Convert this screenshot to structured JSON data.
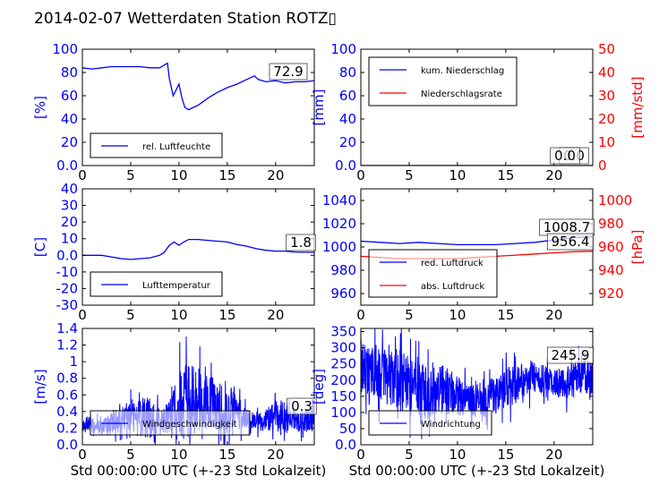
{
  "title": "2014-02-07 Wetterdaten Station ROTZ▯",
  "colors": {
    "left_axis": "#0000ff",
    "right_axis": "#ff0000",
    "text": "#000000"
  },
  "chart_data": [
    {
      "id": "humidity",
      "type": "line",
      "ylabel": "[%]",
      "xlim": [
        0,
        24
      ],
      "ylim": [
        0,
        100
      ],
      "xticks": [
        0,
        5,
        10,
        15,
        20
      ],
      "yticks": [
        0,
        20,
        40,
        60,
        80,
        100
      ],
      "series": [
        {
          "name": "rel. Luftfeuchte",
          "color": "#0000ff",
          "x": [
            0,
            1,
            2,
            3,
            4,
            5,
            6,
            7,
            8,
            8.8,
            9.0,
            9.4,
            9.7,
            10.0,
            10.3,
            10.6,
            11.0,
            11.5,
            12,
            13,
            14,
            15,
            16,
            17,
            17.8,
            18.2,
            19,
            20,
            21,
            22,
            23,
            24
          ],
          "y": [
            84,
            83,
            84,
            85,
            85,
            85,
            85,
            84,
            84,
            88,
            75,
            60,
            65,
            70,
            58,
            50,
            48,
            50,
            52,
            58,
            63,
            67,
            70,
            74,
            77,
            74,
            72,
            73,
            71,
            72,
            72,
            73
          ]
        }
      ],
      "value_label": "72.9",
      "legend_placement": "lower-left"
    },
    {
      "id": "precipitation",
      "type": "line",
      "ylabel": "[mm]",
      "ylabel_right": "[mm/std]",
      "xlim": [
        0,
        24
      ],
      "ylim": [
        0,
        100
      ],
      "ylim_right": [
        0,
        50
      ],
      "xticks": [
        0,
        5,
        10,
        15,
        20
      ],
      "yticks": [
        0,
        20,
        40,
        60,
        80,
        100
      ],
      "yticks_right": [
        0,
        10,
        20,
        30,
        40,
        50
      ],
      "series": [
        {
          "name": "kum. Niederschlag",
          "color": "#0000ff",
          "axis": "left",
          "x": [
            0,
            24
          ],
          "y": [
            0,
            0
          ]
        },
        {
          "name": "Niederschlagsrate",
          "color": "#ff0000",
          "axis": "right",
          "x": [
            0,
            24
          ],
          "y": [
            0,
            0
          ]
        }
      ],
      "value_labels": [
        "0.0",
        "0.0"
      ],
      "legend_placement": "upper-left"
    },
    {
      "id": "temperature",
      "type": "line",
      "ylabel": "[C]",
      "xlim": [
        0,
        24
      ],
      "ylim": [
        -30,
        40
      ],
      "xticks": [
        0,
        5,
        10,
        15,
        20
      ],
      "yticks": [
        -30,
        -20,
        -10,
        0,
        10,
        20,
        30,
        40
      ],
      "series": [
        {
          "name": "Lufttemperatur",
          "color": "#0000ff",
          "x": [
            0,
            1,
            2,
            3,
            4,
            5,
            6,
            7,
            8,
            8.5,
            9,
            9.5,
            10,
            10.5,
            11,
            12,
            13,
            14,
            15,
            16,
            17,
            18,
            19,
            20,
            21,
            22,
            23,
            24
          ],
          "y": [
            0,
            0,
            0,
            -1,
            -2,
            -2.5,
            -2,
            -1.5,
            0,
            2,
            6,
            8,
            6,
            8,
            9.5,
            9.5,
            9,
            8.5,
            8,
            6.5,
            5.5,
            4,
            3,
            2.5,
            2.5,
            2,
            1.8,
            1.8
          ]
        }
      ],
      "value_label": "1.8",
      "legend_placement": "lower-left"
    },
    {
      "id": "pressure",
      "type": "line",
      "ylabel_right": "[hPa]",
      "xlim": [
        0,
        24
      ],
      "ylim": [
        950,
        1050
      ],
      "ylim_right": [
        910,
        1010
      ],
      "xticks": [
        0,
        5,
        10,
        15,
        20
      ],
      "yticks": [
        960,
        980,
        1000,
        1020,
        1040
      ],
      "yticks_right": [
        920,
        940,
        960,
        980,
        1000
      ],
      "series": [
        {
          "name": "red. Luftdruck",
          "color": "#0000ff",
          "axis": "left",
          "x": [
            0,
            2,
            4,
            6,
            8,
            10,
            12,
            14,
            16,
            18,
            20,
            22,
            24
          ],
          "y": [
            1005,
            1004,
            1003,
            1004,
            1003,
            1002,
            1002,
            1002,
            1003,
            1004,
            1006,
            1008,
            1008.7
          ]
        },
        {
          "name": "abs. Luftdruck",
          "color": "#ff0000",
          "axis": "right",
          "x": [
            0,
            2,
            4,
            6,
            8,
            10,
            12,
            14,
            16,
            18,
            20,
            22,
            24
          ],
          "y": [
            952,
            951,
            950,
            950,
            950,
            950,
            951,
            952,
            953,
            954,
            955,
            956,
            956.4
          ]
        }
      ],
      "value_labels": [
        "1008.7",
        "956.4"
      ],
      "legend_placement": "lower-left"
    },
    {
      "id": "wind_speed",
      "type": "line",
      "ylabel": "[m/s]",
      "xlabel": "Std 00:00:00 UTC (+-23 Std Lokalzeit)",
      "xlim": [
        0,
        24
      ],
      "ylim": [
        0,
        1.4
      ],
      "xticks": [
        0,
        5,
        10,
        15,
        20
      ],
      "yticks": [
        0,
        0.2,
        0.4,
        0.6,
        0.8,
        1.0,
        1.2,
        1.4
      ],
      "series": [
        {
          "name": "Windgeschwindigkeit",
          "color": "#0000ff"
        }
      ],
      "noise": {
        "base": [
          0.25,
          0.25,
          0.2,
          0.25,
          0.3,
          0.35,
          0.3,
          0.35,
          0.3,
          0.3,
          0.45,
          0.55,
          0.55,
          0.5,
          0.5,
          0.45,
          0.4,
          0.3,
          0.25,
          0.3,
          0.35,
          0.3,
          0.3,
          0.3,
          0.3
        ],
        "amp": [
          0.1,
          0.15,
          0.15,
          0.2,
          0.2,
          0.25,
          0.35,
          0.4,
          0.2,
          0.3,
          0.6,
          0.65,
          0.6,
          0.5,
          0.45,
          0.4,
          0.3,
          0.2,
          0.15,
          0.2,
          0.25,
          0.2,
          0.2,
          0.2,
          0.2
        ]
      },
      "value_label": "0.3",
      "legend_placement": "lower-left"
    },
    {
      "id": "wind_direction",
      "type": "line",
      "ylabel": "[deg]",
      "xlabel": "Std 00:00:00 UTC (+-23 Std Lokalzeit)",
      "xlim": [
        0,
        24
      ],
      "ylim": [
        0,
        360
      ],
      "xticks": [
        0,
        5,
        10,
        15,
        20
      ],
      "yticks": [
        0,
        50,
        100,
        150,
        200,
        250,
        300,
        350
      ],
      "series": [
        {
          "name": "Windrichtung",
          "color": "#0000ff"
        }
      ],
      "noise": {
        "base": [
          240,
          230,
          220,
          210,
          200,
          180,
          170,
          160,
          170,
          170,
          150,
          140,
          140,
          140,
          150,
          180,
          190,
          200,
          210,
          200,
          190,
          190,
          200,
          210,
          210
        ],
        "amp": [
          110,
          110,
          120,
          130,
          140,
          130,
          120,
          120,
          110,
          110,
          90,
          70,
          70,
          80,
          90,
          90,
          90,
          80,
          70,
          70,
          60,
          70,
          80,
          80,
          80
        ]
      },
      "value_label": "245.9",
      "legend_placement": "lower-left"
    }
  ]
}
